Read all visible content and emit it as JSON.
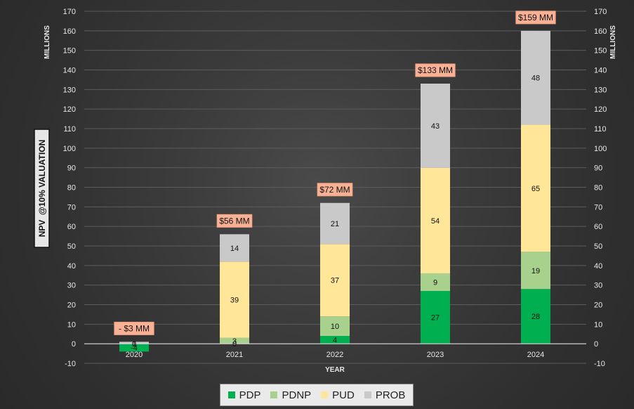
{
  "chart_data": {
    "type": "bar",
    "stacked": true,
    "categories": [
      "2020",
      "2021",
      "2022",
      "2023",
      "2024"
    ],
    "series": [
      {
        "name": "PDP",
        "color": "#00b050",
        "values": [
          -4,
          0,
          4,
          27,
          28
        ]
      },
      {
        "name": "PDNP",
        "color": "#a9d18e",
        "values": [
          0,
          3,
          10,
          9,
          19
        ]
      },
      {
        "name": "PUD",
        "color": "#ffe699",
        "values": [
          0,
          39,
          37,
          54,
          65
        ]
      },
      {
        "name": "PROB",
        "color": "#c9c9c9",
        "values": [
          1,
          14,
          21,
          43,
          48
        ]
      }
    ],
    "segment_labels": [
      [
        "-4",
        "0",
        "4",
        "27",
        "28"
      ],
      [
        "0",
        "3",
        "10",
        "9",
        "19"
      ],
      [
        "0",
        "39",
        "37",
        "54",
        "65"
      ],
      [
        "1",
        "14",
        "21",
        "43",
        "48"
      ]
    ],
    "totals": [
      {
        "label": "- $3 MM",
        "value": 3
      },
      {
        "label": "$56 MM",
        "value": 56
      },
      {
        "label": "$72 MM",
        "value": 72
      },
      {
        "label": "$133 MM",
        "value": 133
      },
      {
        "label": "$159 MM",
        "value": 159
      }
    ],
    "total_label_color": "#f8b195",
    "ylim": [
      -10,
      170
    ],
    "yticks": [
      -10,
      0,
      10,
      20,
      30,
      40,
      50,
      60,
      70,
      80,
      90,
      100,
      110,
      120,
      130,
      140,
      150,
      160,
      170
    ],
    "units_label": "MILLIONS",
    "xlabel": "YEAR",
    "ylabel": "NPV  @10% VALUATION",
    "grid": true,
    "legend_position": "bottom"
  }
}
